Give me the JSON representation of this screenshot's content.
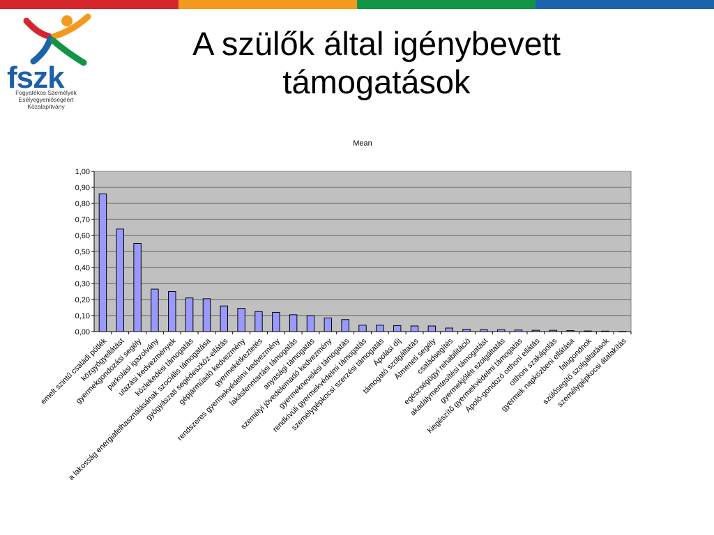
{
  "header": {
    "stripe_colors": [
      "#d4262c",
      "#f39a1e",
      "#129447",
      "#1c63ae"
    ]
  },
  "logo": {
    "text": "fszk",
    "subtitle_lines": [
      "Fogyatékos Személyek",
      "Esélyegyenlőségéért",
      "Közalapítvány"
    ]
  },
  "slide": {
    "title_line1": "A szülők által igénybevett",
    "title_line2": "támogatások"
  },
  "chart_data": {
    "type": "bar",
    "title": "Mean",
    "xlabel": "",
    "ylabel": "",
    "ylim": [
      0,
      1
    ],
    "ytick_step": 0.1,
    "ytick_labels": [
      "0,00",
      "0,10",
      "0,20",
      "0,30",
      "0,40",
      "0,50",
      "0,60",
      "0,70",
      "0,80",
      "0,90",
      "1,00"
    ],
    "grid": true,
    "plot_background": "#c0c0c0",
    "bar_color": "#9999ff",
    "categories": [
      "emelt szintű családi pótlék",
      "közgyógyellátást",
      "gyermekgondozási segély",
      "parkolási igazolvány",
      "utazási kedvezmények",
      "közlekedési támogatás",
      "a lakosság energiafelhasználásának szociális támogatása",
      "gyógyászati segédeszköz-ellátás",
      "gépjárműadó kedvezmény",
      "gyermekétkeztetés",
      "rendszeres gyermekvédelmi kedvezmény",
      "lakásfenntartási támogatás",
      "anyasági támogatás",
      "személyi jövedelemadó kedvezmény",
      "gyermeknevelési támogatás",
      "rendkívüli gyermekvédelmi támogatás",
      "személygépkocsi szerzési támogatás",
      "Ápolási díj",
      "támogató szolgáltatás",
      "Átmeneti segély",
      "családsegítés",
      "egészségügyi rehabilitáció",
      "akadálymentesítési támogatást",
      "gyermekjóléti szolgáltatás",
      "kiegészítő gyermekvédelmi támogatás",
      "Ápoló-gondozó otthoni ellátás",
      "otthoni szakápolás",
      "gyermek napközbeni ellátása",
      "falugondnok",
      "szülősegítő szolgáltatások",
      "személygépkocsi átalakítás"
    ],
    "values": [
      0.86,
      0.64,
      0.55,
      0.265,
      0.25,
      0.21,
      0.205,
      0.16,
      0.145,
      0.125,
      0.12,
      0.105,
      0.1,
      0.085,
      0.075,
      0.04,
      0.04,
      0.037,
      0.035,
      0.035,
      0.022,
      0.015,
      0.012,
      0.012,
      0.01,
      0.008,
      0.008,
      0.006,
      0.004,
      0.003,
      0.0
    ]
  }
}
